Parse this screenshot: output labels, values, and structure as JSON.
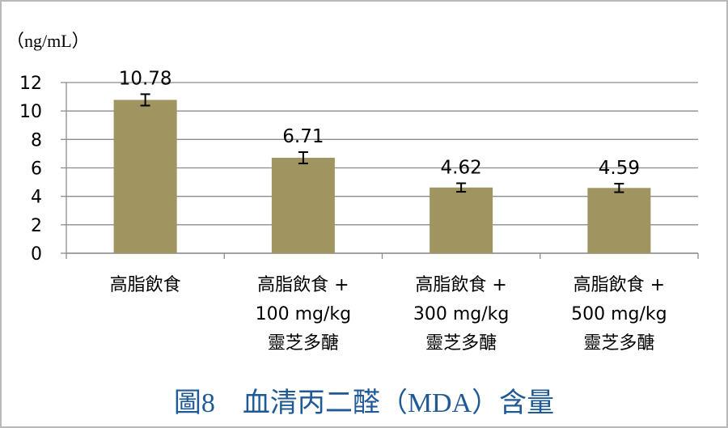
{
  "chart_data": {
    "type": "bar",
    "ylabel": "（ng/mL）",
    "ylim": [
      0,
      12
    ],
    "yticks": [
      0,
      2,
      4,
      6,
      8,
      10,
      12
    ],
    "grid": true,
    "categories": [
      [
        "高脂飲食"
      ],
      [
        "高脂飲食 +",
        "100 mg/kg",
        "靈芝多醣"
      ],
      [
        "高脂飲食 +",
        "300 mg/kg",
        "靈芝多醣"
      ],
      [
        "高脂飲食 +",
        "500 mg/kg",
        "靈芝多醣"
      ]
    ],
    "values": [
      10.78,
      6.71,
      4.62,
      4.59
    ],
    "value_labels": [
      "10.78",
      "6.71",
      "4.62",
      "4.59"
    ],
    "error": [
      0.4,
      0.4,
      0.3,
      0.3
    ],
    "bar_color": "#a09461",
    "grid_color": "#8c8c8c"
  },
  "caption": "圖8　血清丙二醛（MDA）含量"
}
